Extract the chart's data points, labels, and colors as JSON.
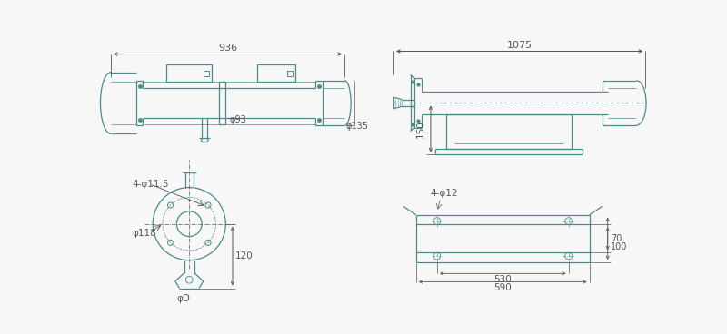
{
  "bg_color": "#f7f7f7",
  "lc": "#4a8a8a",
  "dc": "#555555",
  "views": {
    "top_left": {
      "dim_936": "936",
      "dim_93": "φ93",
      "dim_135": "φ135"
    },
    "top_right": {
      "dim_1075": "1075",
      "dim_150": "150"
    },
    "bot_left": {
      "dim_4phi115": "4-φ11.5",
      "dim_phi118": "φ118",
      "dim_120": "120",
      "dim_phiD": "φD"
    },
    "bot_right": {
      "dim_4phi12": "4-φ12",
      "dim_70": "70",
      "dim_100": "100",
      "dim_530": "530",
      "dim_590": "590"
    }
  }
}
